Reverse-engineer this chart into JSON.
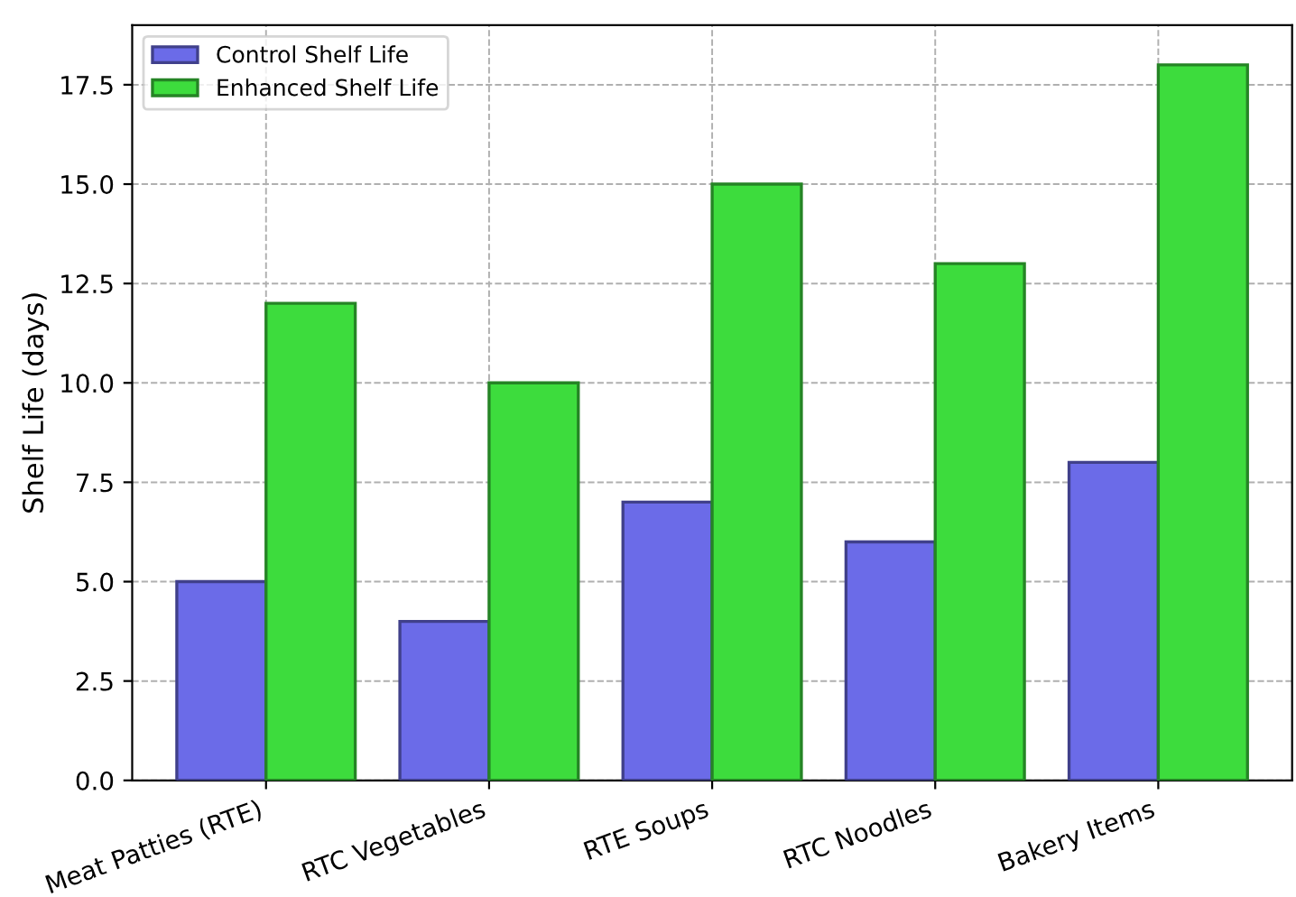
{
  "chart_data": {
    "type": "bar",
    "ylabel": "Shelf Life (days)",
    "categories": [
      "Meat Patties (RTE)",
      "RTC Vegetables",
      "RTE Soups",
      "RTC Noodles",
      "Bakery Items"
    ],
    "series": [
      {
        "name": "Control Shelf Life",
        "color": "#6b6be8",
        "values": [
          5,
          4,
          7,
          6,
          8
        ]
      },
      {
        "name": "Enhanced Shelf Life",
        "color": "#3ddc3d",
        "values": [
          12,
          10,
          15,
          13,
          18
        ]
      }
    ],
    "ylim": [
      0,
      19
    ],
    "yticks": [
      {
        "value": 0,
        "label": "0.0"
      },
      {
        "value": 2.5,
        "label": "2.5"
      },
      {
        "value": 5,
        "label": "5.0"
      },
      {
        "value": 7.5,
        "label": "7.5"
      },
      {
        "value": 10,
        "label": "10.0"
      },
      {
        "value": 12.5,
        "label": "12.5"
      },
      {
        "value": 15,
        "label": "15.0"
      },
      {
        "value": 17.5,
        "label": "17.5"
      }
    ],
    "grid": true,
    "legend": "top left"
  }
}
